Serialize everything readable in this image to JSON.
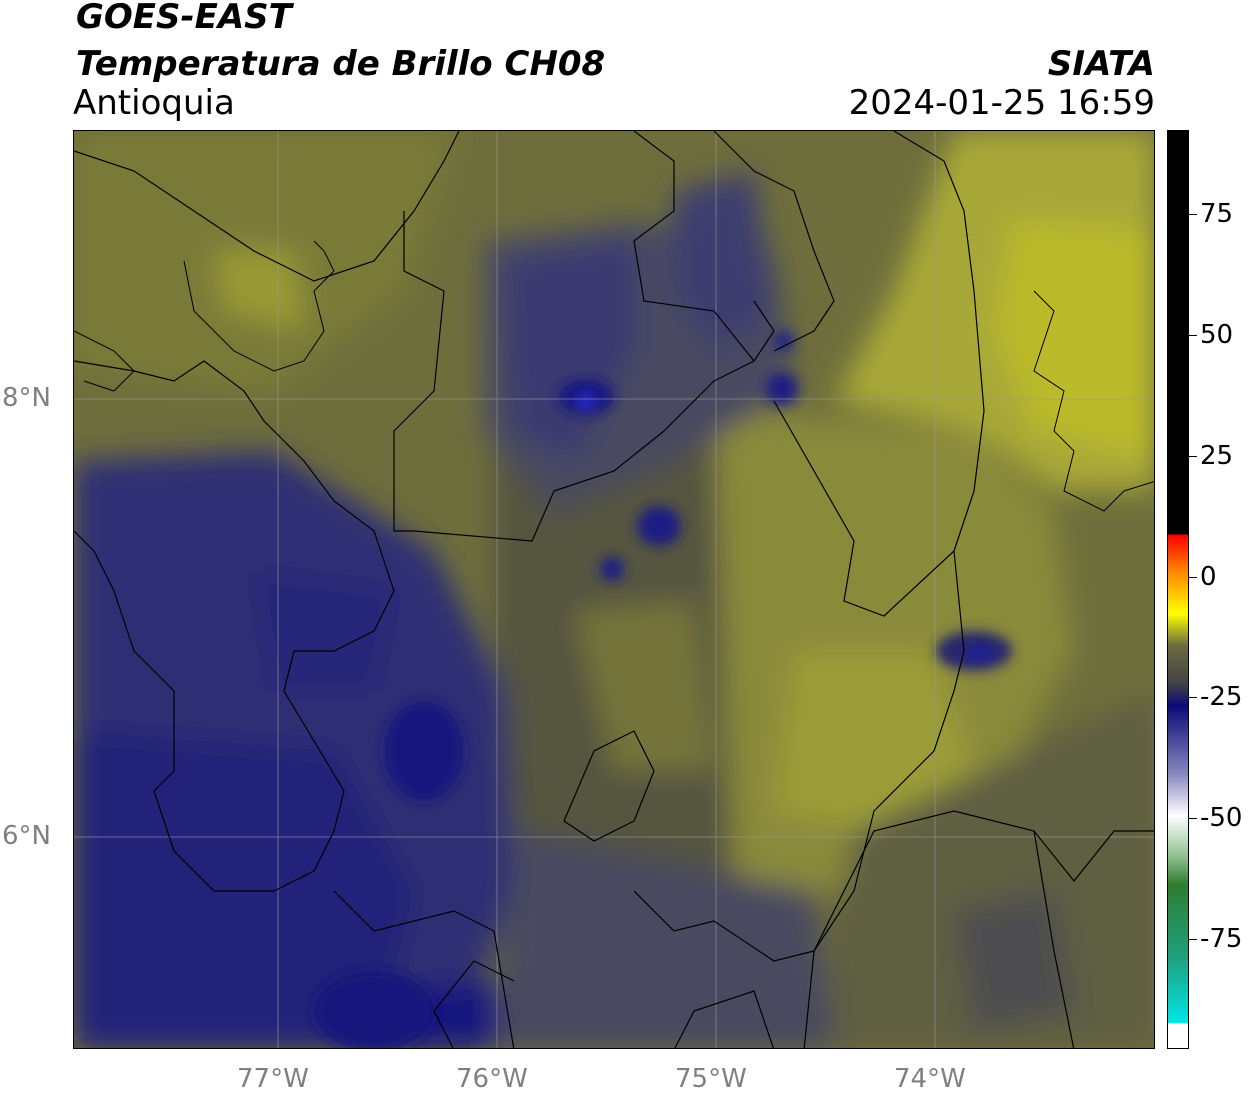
{
  "header": {
    "satellite": "GOES-EAST",
    "product": "Temperatura de Brillo CH08",
    "region": "Antioquia",
    "agency": "SIATA",
    "datetime": "2024-01-25 16:59"
  },
  "map": {
    "lon_ticks": [
      "77°W",
      "76°W",
      "75°W",
      "74°W"
    ],
    "lat_ticks": [
      "8°N",
      "6°N"
    ],
    "lon_range": [
      -77.94,
      -73.0
    ],
    "lat_range": [
      4.95,
      9.15
    ],
    "gridlines": true
  },
  "colorbar": {
    "ticks": [
      "75",
      "50",
      "25",
      "0",
      "-25",
      "-50",
      "-75"
    ],
    "range": [
      -94,
      91
    ],
    "colors": {
      "warm_black": "#000000",
      "red": "#ff0000",
      "orange": "#ff9900",
      "yellow": "#ffff00",
      "olive": "#8c8c30",
      "gray": "#4d4d4d",
      "navy": "#0a0a78",
      "blue_white": "#c8c8e6",
      "white": "#ffffff",
      "green": "#2e8b2e",
      "cyan": "#00e6e6"
    }
  }
}
